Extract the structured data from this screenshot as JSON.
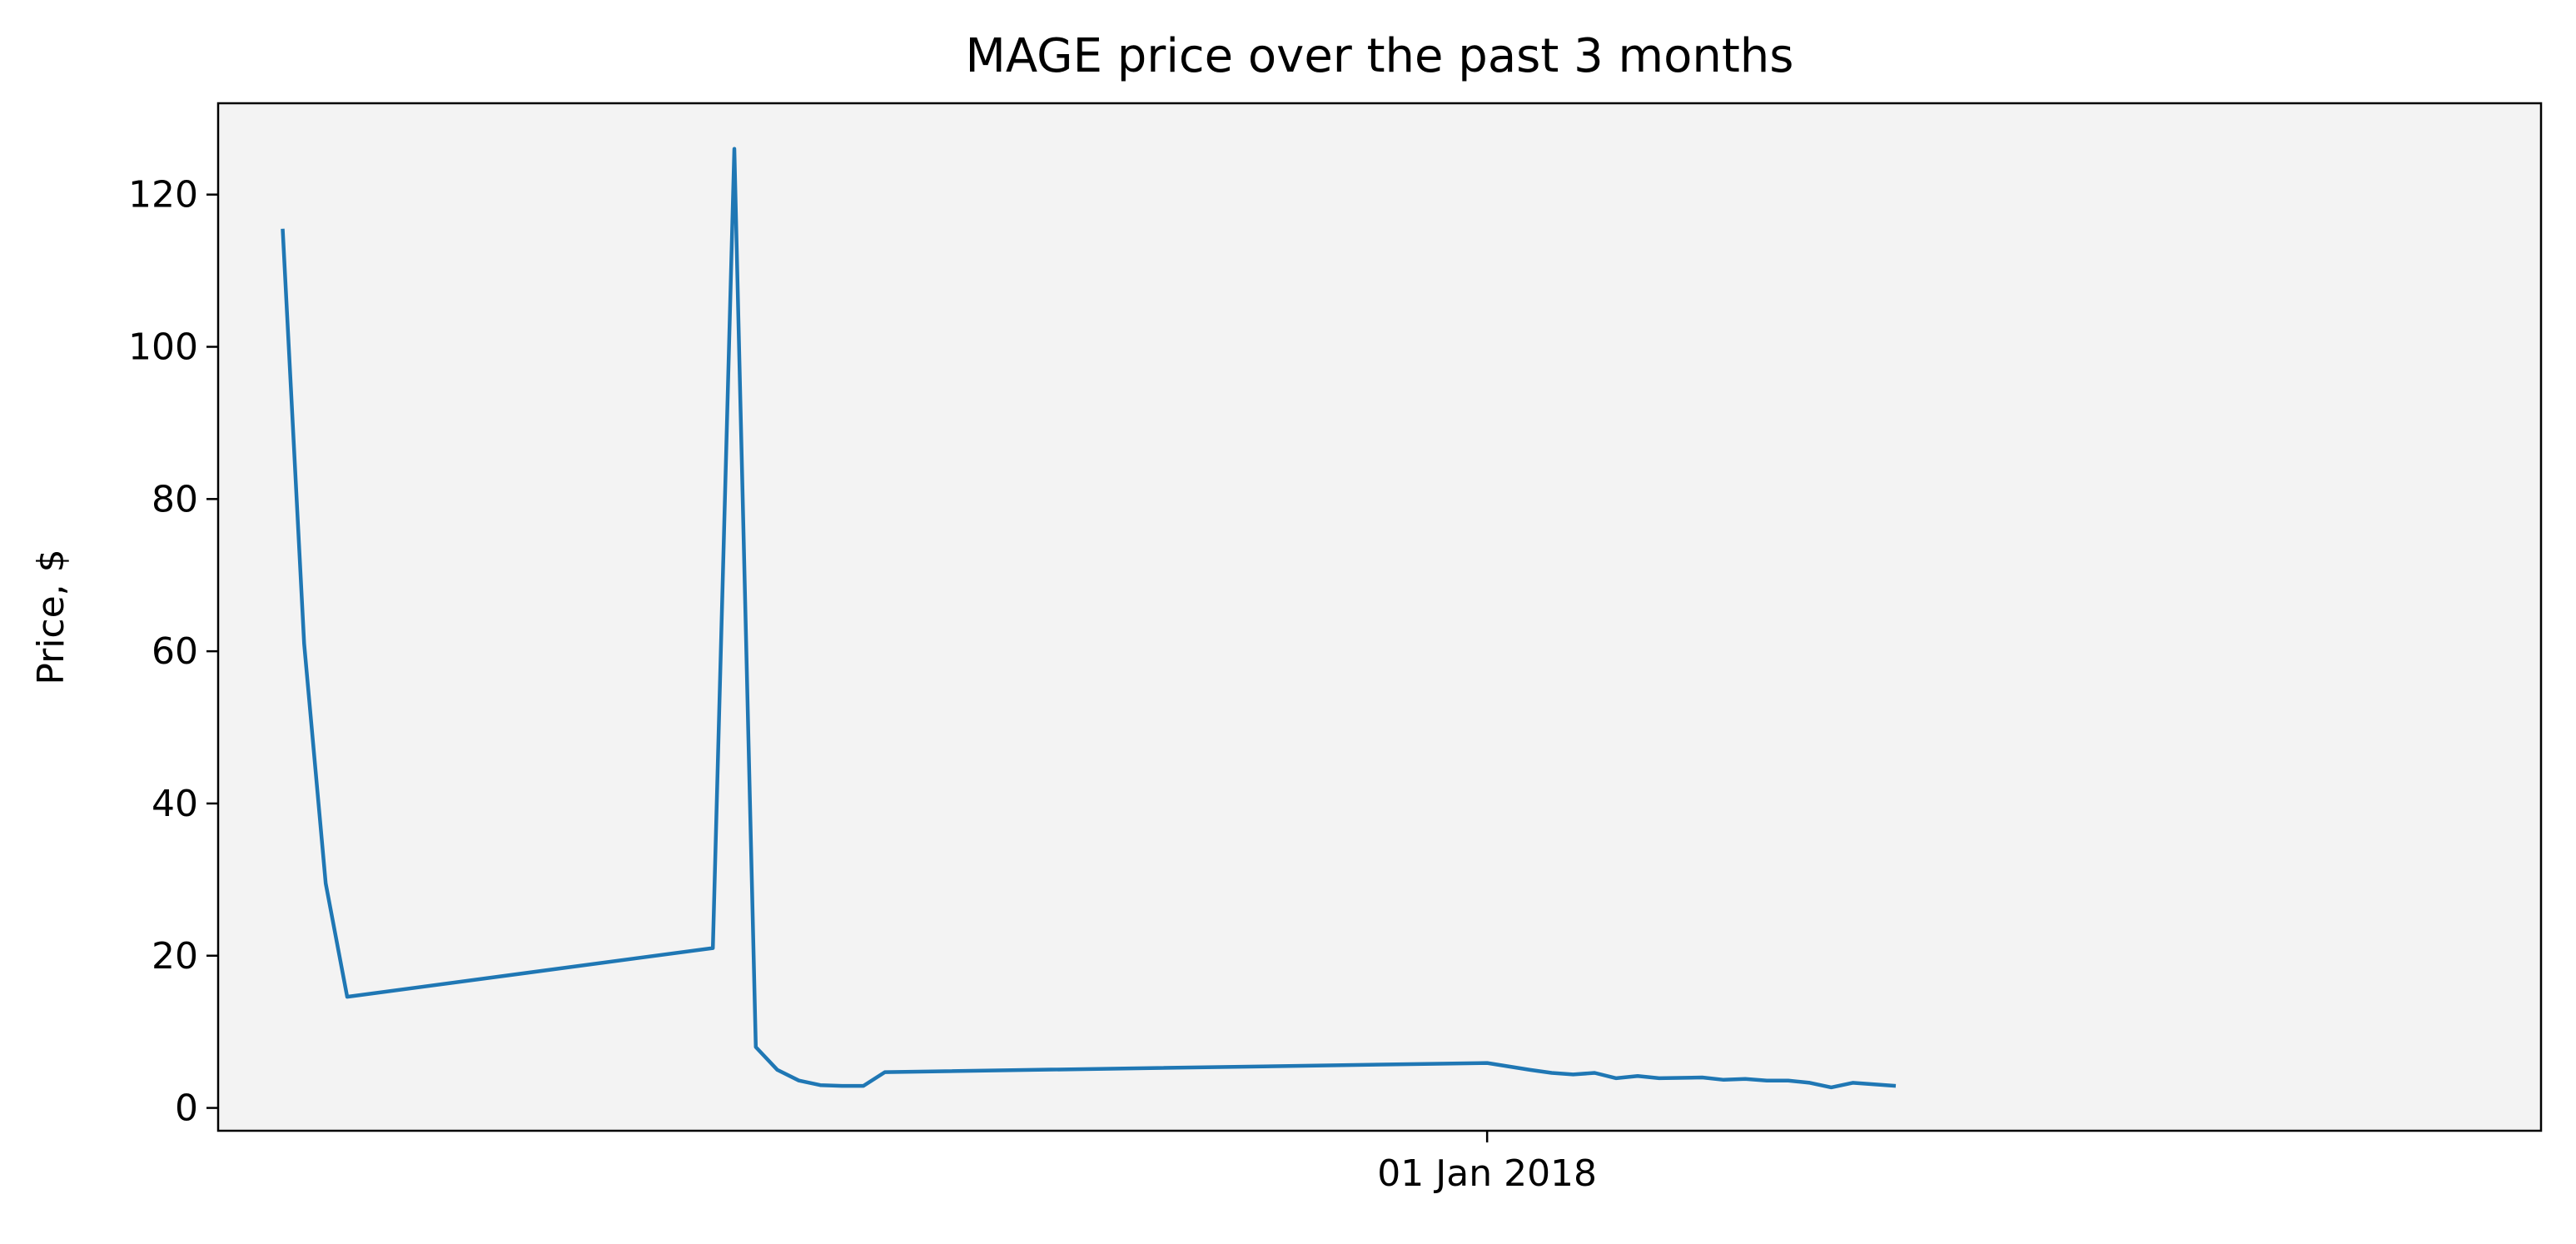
{
  "chart_data": {
    "type": "line",
    "title": "MAGE price over the past 3 months",
    "xlabel": "",
    "ylabel": "Price, $",
    "x_type": "date",
    "x_ticks": [
      {
        "date": "2018-01-01",
        "label": "01 Jan 2018"
      }
    ],
    "xlim": [
      "2017-11-03",
      "2018-02-19"
    ],
    "ylim": [
      -3,
      132
    ],
    "y_ticks": [
      0,
      20,
      40,
      60,
      80,
      100,
      120
    ],
    "grid": false,
    "legend": "none",
    "plot_background": "#f3f3f3",
    "series": [
      {
        "color": "#1f77b4",
        "points": [
          {
            "x": "2017-11-06",
            "y": 115.5
          },
          {
            "x": "2017-11-07",
            "y": 61
          },
          {
            "x": "2017-11-08",
            "y": 29.5
          },
          {
            "x": "2017-11-09",
            "y": 14.6
          },
          {
            "x": "2017-11-26",
            "y": 21
          },
          {
            "x": "2017-11-27",
            "y": 126
          },
          {
            "x": "2017-11-28",
            "y": 8
          },
          {
            "x": "2017-11-29",
            "y": 5
          },
          {
            "x": "2017-11-30",
            "y": 3.6
          },
          {
            "x": "2017-12-01",
            "y": 3
          },
          {
            "x": "2017-12-02",
            "y": 2.9
          },
          {
            "x": "2017-12-03",
            "y": 2.9
          },
          {
            "x": "2017-12-04",
            "y": 4.7
          },
          {
            "x": "2018-01-01",
            "y": 5.9
          },
          {
            "x": "2018-01-03",
            "y": 5
          },
          {
            "x": "2018-01-04",
            "y": 4.6
          },
          {
            "x": "2018-01-05",
            "y": 4.4
          },
          {
            "x": "2018-01-06",
            "y": 4.6
          },
          {
            "x": "2018-01-07",
            "y": 3.9
          },
          {
            "x": "2018-01-08",
            "y": 4.2
          },
          {
            "x": "2018-01-09",
            "y": 3.9
          },
          {
            "x": "2018-01-11",
            "y": 4
          },
          {
            "x": "2018-01-12",
            "y": 3.7
          },
          {
            "x": "2018-01-13",
            "y": 3.8
          },
          {
            "x": "2018-01-14",
            "y": 3.6
          },
          {
            "x": "2018-01-15",
            "y": 3.6
          },
          {
            "x": "2018-01-16",
            "y": 3.3
          },
          {
            "x": "2018-01-17",
            "y": 2.7
          },
          {
            "x": "2018-01-18",
            "y": 3.3
          },
          {
            "x": "2018-01-20",
            "y": 2.9
          }
        ]
      }
    ]
  }
}
